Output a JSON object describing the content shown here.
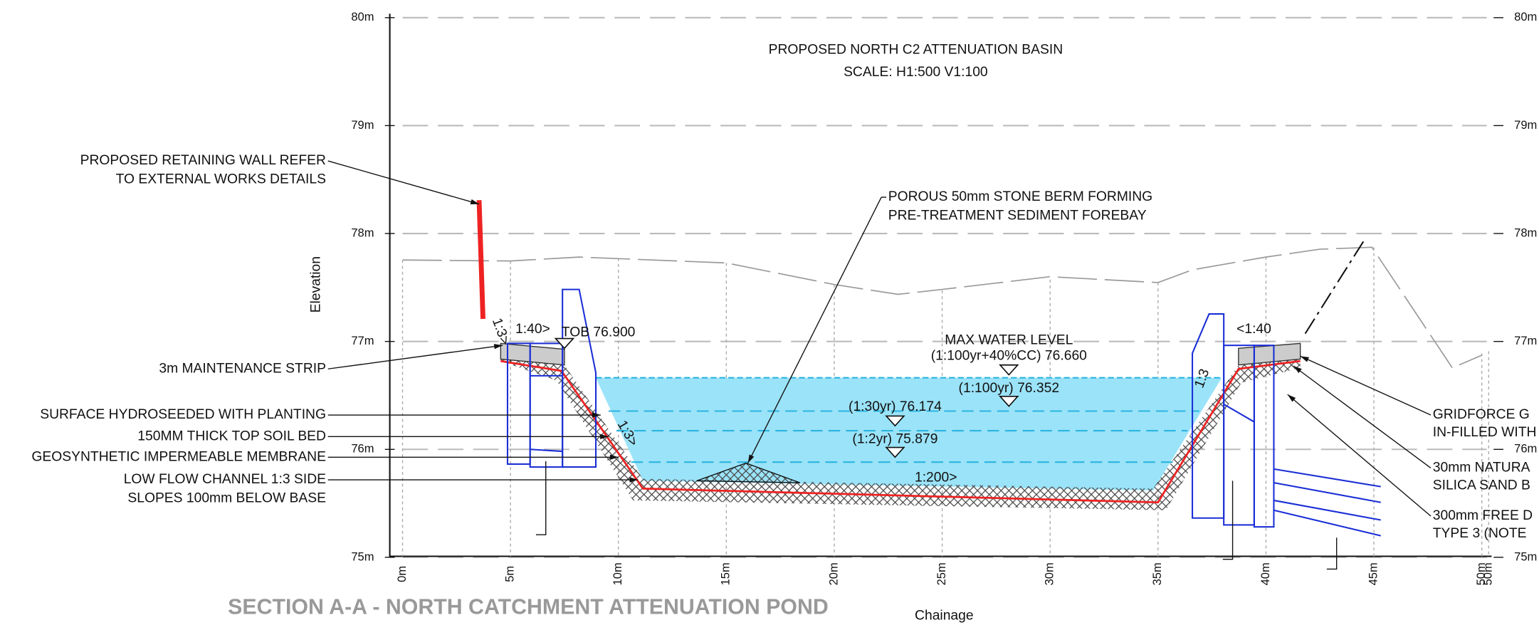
{
  "title": "PROPOSED NORTH C2 ATTENUATION BASIN",
  "subtitle": "SCALE: H1:500 V1:100",
  "section_title": "SECTION A-A - NORTH CATCHMENT ATTENUATION POND",
  "y_axis": {
    "label": "Elevation",
    "ticks": [
      "80m",
      "79m",
      "78m",
      "77m",
      "76m",
      "75m"
    ]
  },
  "x_axis": {
    "label": "Chainage",
    "ticks": [
      "0m",
      "5m",
      "10m",
      "15m",
      "20m",
      "25m",
      "30m",
      "35m",
      "40m",
      "45m",
      "50m",
      "50m"
    ]
  },
  "left_notes": [
    {
      "lines": [
        "PROPOSED RETAINING WALL REFER",
        "TO EXTERNAL WORKS DETAILS"
      ]
    },
    {
      "lines": [
        "3m MAINTENANCE STRIP"
      ]
    },
    {
      "lines": [
        "SURFACE HYDROSEEDED WITH PLANTING"
      ]
    },
    {
      "lines": [
        "150MM THICK TOP SOIL BED"
      ]
    },
    {
      "lines": [
        "GEOSYNTHETIC IMPERMEABLE MEMBRANE"
      ]
    },
    {
      "lines": [
        "LOW FLOW CHANNEL 1:3 SIDE",
        "SLOPES 100mm BELOW BASE"
      ]
    }
  ],
  "berm_note": {
    "lines": [
      "POROUS 50mm STONE BERM FORMING",
      "PRE-TREATMENT SEDIMENT FOREBAY"
    ]
  },
  "right_notes": [
    {
      "lines": [
        "GRIDFORCE G",
        "IN-FILLED WITH"
      ]
    },
    {
      "lines": [
        "30mm NATURA",
        "SILICA SAND B"
      ]
    },
    {
      "lines": [
        "300mm FREE D",
        "TYPE 3 (NOTE"
      ]
    }
  ],
  "levels": [
    "TOB 76.900",
    "MAX WATER LEVEL",
    "(1:100yr+40%CC) 76.660",
    "(1:100yr) 76.352",
    "(1:30yr) 76.174",
    "(1:2yr) 75.879"
  ],
  "slopes": [
    "1:3>",
    "1:40>",
    "1:3>",
    "1:3",
    "<1:40",
    "1:200>"
  ]
}
